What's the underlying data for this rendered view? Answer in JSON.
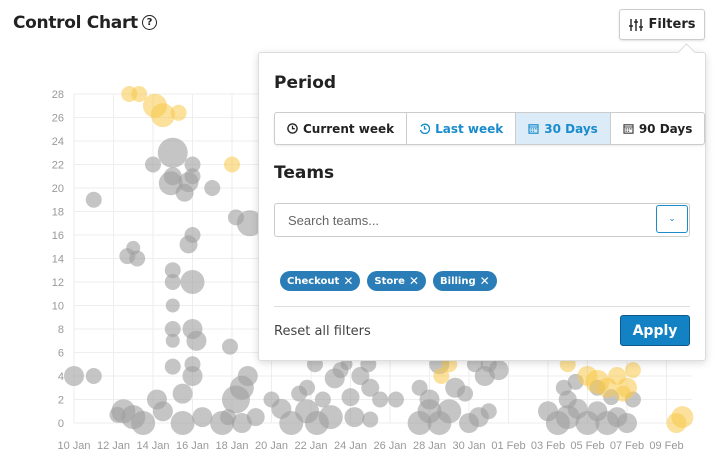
{
  "header": {
    "title": "Control Chart",
    "help_icon": "?",
    "filters_label": "Filters"
  },
  "filters": {
    "period_heading": "Period",
    "period_options": [
      {
        "label": "Current week",
        "icon": "clock-icon",
        "state": "normal"
      },
      {
        "label": "Last week",
        "icon": "history-icon",
        "state": "highlight"
      },
      {
        "label": "30 Days",
        "icon": "calendar-icon",
        "state": "selected"
      },
      {
        "label": "90 Days",
        "icon": "calendar-icon",
        "state": "normal"
      }
    ],
    "teams_heading": "Teams",
    "search_placeholder": "Search teams...",
    "search_value": "",
    "selected_teams": [
      "Checkout",
      "Store",
      "Billing"
    ],
    "reset_label": "Reset all filters",
    "apply_label": "Apply"
  },
  "colors": {
    "accent": "#1382c4",
    "chip": "#2a7db6",
    "grey_point": "#9e9e9e",
    "yellow_point": "#f7c948"
  },
  "chart_data": {
    "type": "scatter",
    "title": "Control Chart",
    "x_ticks": [
      "10 Jan",
      "12 Jan",
      "14 Jan",
      "16 Jan",
      "18 Jan",
      "20 Jan",
      "22 Jan",
      "24 Jan",
      "26 Jan",
      "28 Jan",
      "30 Jan",
      "01 Feb",
      "03 Feb",
      "05 Feb",
      "07 Feb",
      "09 Feb"
    ],
    "y_ticks": [
      "0",
      "2",
      "4",
      "6",
      "8",
      "10",
      "12",
      "14",
      "16",
      "18",
      "20",
      "22",
      "24",
      "26",
      "28"
    ],
    "xlim_days_from_10_jan": [
      0,
      31
    ],
    "ylim": [
      0,
      28
    ],
    "grid": true,
    "series": [
      {
        "name": "normal",
        "color": "#9e9e9e",
        "points": [
          [
            0,
            4,
            10
          ],
          [
            1,
            4,
            8
          ],
          [
            1,
            19,
            8
          ],
          [
            2.7,
            14.2,
            8
          ],
          [
            3,
            14.9,
            7
          ],
          [
            3.2,
            14,
            8
          ],
          [
            4,
            22,
            8
          ],
          [
            5,
            23,
            15
          ],
          [
            4.9,
            20.4,
            12
          ],
          [
            5,
            21,
            9
          ],
          [
            5,
            13,
            8
          ],
          [
            5,
            12,
            8
          ],
          [
            5,
            10,
            7
          ],
          [
            5,
            8,
            8
          ],
          [
            5,
            7,
            7
          ],
          [
            6,
            22,
            8
          ],
          [
            6,
            21,
            8
          ],
          [
            5.8,
            20.5,
            10
          ],
          [
            5.6,
            19.6,
            9
          ],
          [
            6,
            16,
            8
          ],
          [
            5.8,
            15.2,
            9
          ],
          [
            6,
            12,
            12
          ],
          [
            6,
            8,
            10
          ],
          [
            6.2,
            7,
            10
          ],
          [
            7,
            20,
            8
          ],
          [
            8.2,
            17.5,
            8
          ],
          [
            8.9,
            17,
            13
          ],
          [
            7.9,
            6.5,
            8
          ],
          [
            8.2,
            2,
            14
          ],
          [
            8.5,
            3,
            12
          ],
          [
            8.8,
            4,
            10
          ],
          [
            10,
            2,
            8
          ],
          [
            5,
            4.8,
            8
          ],
          [
            6,
            4,
            10
          ],
          [
            6,
            5,
            8
          ],
          [
            2.5,
            1,
            12
          ],
          [
            3.5,
            0,
            12
          ],
          [
            4.5,
            1,
            10
          ],
          [
            5.5,
            0,
            12
          ],
          [
            6.5,
            0.5,
            10
          ],
          [
            7.5,
            0,
            12
          ],
          [
            8.5,
            0,
            10
          ],
          [
            4.2,
            2,
            10
          ],
          [
            5.5,
            2.5,
            10
          ],
          [
            3,
            0.5,
            12
          ],
          [
            2.2,
            0.7,
            8
          ],
          [
            9.2,
            0.5,
            9
          ],
          [
            7.8,
            0.5,
            8
          ],
          [
            10.5,
            1.2,
            10
          ],
          [
            11,
            0,
            12
          ],
          [
            11.4,
            2.5,
            8
          ],
          [
            11.8,
            1,
            12
          ],
          [
            12.3,
            0,
            12
          ],
          [
            12.6,
            2,
            8
          ],
          [
            13,
            0.5,
            12
          ],
          [
            12.2,
            5,
            8
          ],
          [
            13.5,
            4.5,
            8
          ],
          [
            13.8,
            5,
            6
          ],
          [
            14.5,
            4,
            9
          ],
          [
            14.9,
            5,
            8
          ],
          [
            15,
            3,
            9
          ],
          [
            15.5,
            2,
            8
          ],
          [
            16.3,
            2,
            8
          ],
          [
            13.2,
            3.8,
            10
          ],
          [
            14.2,
            0.5,
            10
          ],
          [
            15,
            0.3,
            8
          ],
          [
            11.8,
            3,
            8
          ],
          [
            14,
            2.2,
            9
          ],
          [
            17.5,
            0,
            12
          ],
          [
            18,
            1,
            12
          ],
          [
            18,
            2,
            10
          ],
          [
            18.5,
            0,
            12
          ],
          [
            19,
            1,
            12
          ],
          [
            19.3,
            3,
            10
          ],
          [
            20,
            0,
            10
          ],
          [
            20.5,
            0.5,
            10
          ],
          [
            21,
            1,
            8
          ],
          [
            19.8,
            2.5,
            8
          ],
          [
            20.8,
            4,
            10
          ],
          [
            21.5,
            4.5,
            10
          ],
          [
            21,
            5,
            8
          ],
          [
            18.5,
            5,
            10
          ],
          [
            20.3,
            5,
            8
          ],
          [
            17.5,
            3,
            8
          ],
          [
            24,
            1,
            10
          ],
          [
            24.5,
            0,
            12
          ],
          [
            25,
            0.5,
            12
          ],
          [
            25,
            2,
            9
          ],
          [
            25.4,
            3.5,
            8
          ],
          [
            26,
            0,
            12
          ],
          [
            26.5,
            1,
            10
          ],
          [
            27,
            0,
            12
          ],
          [
            27.5,
            0.5,
            10
          ],
          [
            28,
            0,
            10
          ],
          [
            28.3,
            2,
            8
          ],
          [
            24.8,
            3,
            8
          ],
          [
            26.5,
            3,
            8
          ],
          [
            27.2,
            2.2,
            8
          ],
          [
            25.5,
            1.2,
            10
          ]
        ]
      },
      {
        "name": "outlier",
        "color": "#f7c948",
        "points": [
          [
            2.8,
            28,
            8
          ],
          [
            3.3,
            28,
            8
          ],
          [
            4.1,
            27,
            12
          ],
          [
            4.5,
            26.2,
            12
          ],
          [
            5.3,
            26.4,
            8
          ],
          [
            8,
            22,
            8
          ],
          [
            19,
            5,
            8
          ],
          [
            18.6,
            4,
            8
          ],
          [
            25,
            5,
            8
          ],
          [
            26,
            4,
            10
          ],
          [
            26.5,
            3.5,
            12
          ],
          [
            27,
            3,
            10
          ],
          [
            27.5,
            4,
            9
          ],
          [
            28,
            3,
            10
          ],
          [
            28.3,
            4.5,
            8
          ],
          [
            27.8,
            2.5,
            8
          ],
          [
            30.5,
            0,
            10
          ],
          [
            30.8,
            0.5,
            11
          ]
        ]
      }
    ]
  }
}
